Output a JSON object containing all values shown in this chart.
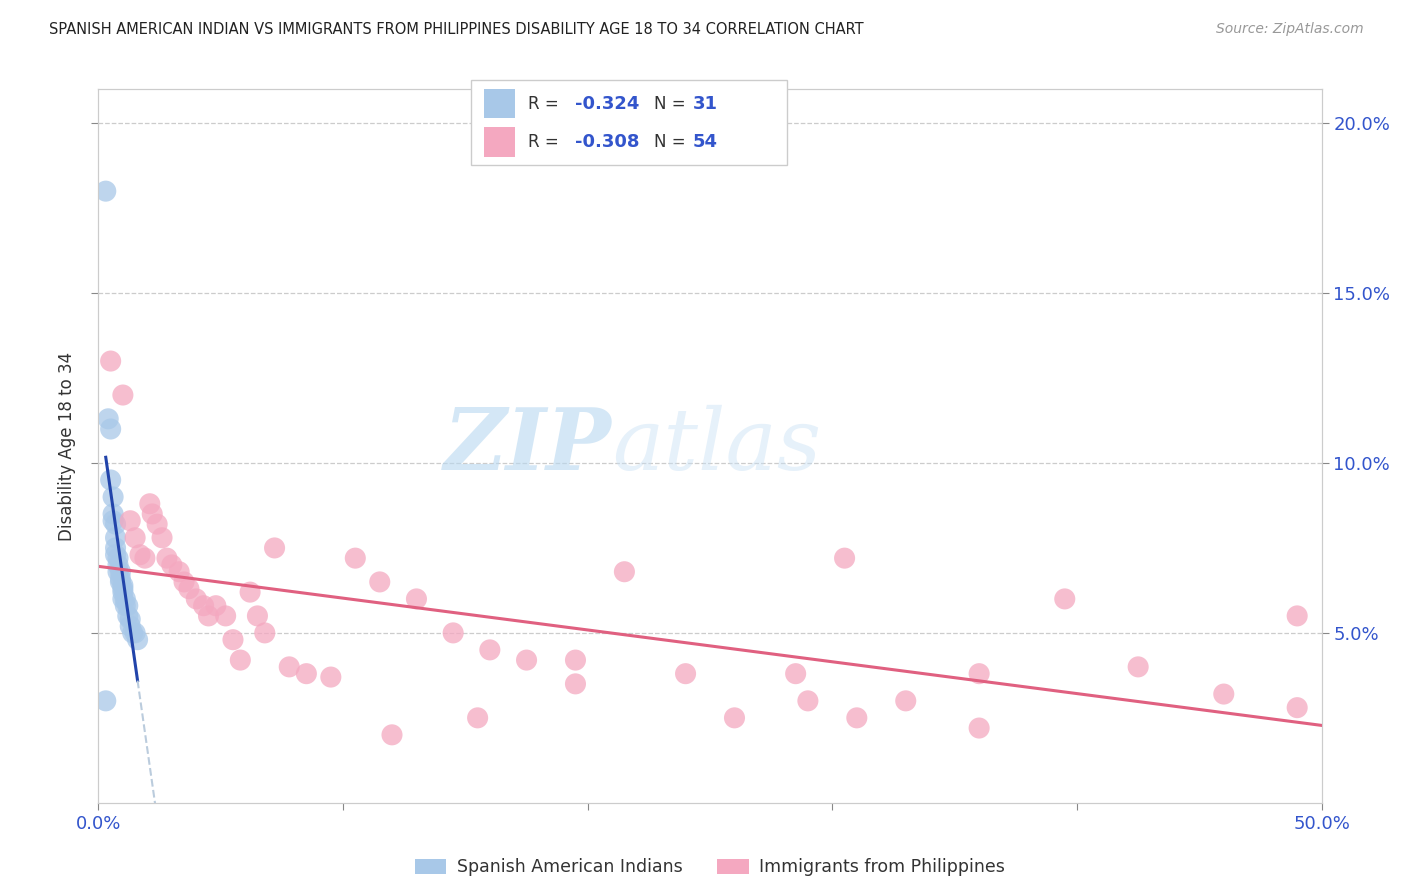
{
  "title": "SPANISH AMERICAN INDIAN VS IMMIGRANTS FROM PHILIPPINES DISABILITY AGE 18 TO 34 CORRELATION CHART",
  "source": "Source: ZipAtlas.com",
  "ylabel": "Disability Age 18 to 34",
  "xlim": [
    0.0,
    0.5
  ],
  "ylim": [
    0.0,
    0.21
  ],
  "yticks": [
    0.05,
    0.1,
    0.15,
    0.2
  ],
  "ytick_labels": [
    "5.0%",
    "10.0%",
    "15.0%",
    "20.0%"
  ],
  "legend_R1": "-0.324",
  "legend_N1": "31",
  "legend_R2": "-0.308",
  "legend_N2": "54",
  "color_blue": "#a8c8e8",
  "color_pink": "#f4a8c0",
  "line_blue": "#2244aa",
  "line_pink": "#e06080",
  "line_dashed_color": "#bbccdd",
  "watermark_zip": "ZIP",
  "watermark_atlas": "atlas",
  "legend_label1": "Spanish American Indians",
  "legend_label2": "Immigrants from Philippines",
  "blue_x": [
    0.003,
    0.004,
    0.005,
    0.005,
    0.006,
    0.006,
    0.006,
    0.007,
    0.007,
    0.007,
    0.007,
    0.008,
    0.008,
    0.008,
    0.009,
    0.009,
    0.009,
    0.01,
    0.01,
    0.01,
    0.01,
    0.011,
    0.011,
    0.012,
    0.012,
    0.013,
    0.013,
    0.014,
    0.015,
    0.016,
    0.003
  ],
  "blue_y": [
    0.18,
    0.113,
    0.11,
    0.095,
    0.09,
    0.085,
    0.083,
    0.082,
    0.078,
    0.075,
    0.073,
    0.072,
    0.07,
    0.068,
    0.068,
    0.066,
    0.065,
    0.064,
    0.063,
    0.062,
    0.06,
    0.06,
    0.058,
    0.058,
    0.055,
    0.054,
    0.052,
    0.05,
    0.05,
    0.048,
    0.03
  ],
  "pink_x": [
    0.005,
    0.01,
    0.013,
    0.015,
    0.017,
    0.019,
    0.021,
    0.022,
    0.024,
    0.026,
    0.028,
    0.03,
    0.033,
    0.035,
    0.037,
    0.04,
    0.043,
    0.045,
    0.048,
    0.052,
    0.055,
    0.058,
    0.062,
    0.065,
    0.068,
    0.072,
    0.078,
    0.085,
    0.095,
    0.105,
    0.115,
    0.13,
    0.145,
    0.16,
    0.175,
    0.195,
    0.215,
    0.24,
    0.26,
    0.285,
    0.305,
    0.33,
    0.36,
    0.395,
    0.425,
    0.46,
    0.49,
    0.29,
    0.195,
    0.155,
    0.12,
    0.36,
    0.49,
    0.31
  ],
  "pink_y": [
    0.13,
    0.12,
    0.083,
    0.078,
    0.073,
    0.072,
    0.088,
    0.085,
    0.082,
    0.078,
    0.072,
    0.07,
    0.068,
    0.065,
    0.063,
    0.06,
    0.058,
    0.055,
    0.058,
    0.055,
    0.048,
    0.042,
    0.062,
    0.055,
    0.05,
    0.075,
    0.04,
    0.038,
    0.037,
    0.072,
    0.065,
    0.06,
    0.05,
    0.045,
    0.042,
    0.035,
    0.068,
    0.038,
    0.025,
    0.038,
    0.072,
    0.03,
    0.038,
    0.06,
    0.04,
    0.032,
    0.028,
    0.03,
    0.042,
    0.025,
    0.02,
    0.022,
    0.055,
    0.025
  ],
  "blue_line_x_start": 0.003,
  "blue_line_x_end_solid": 0.016,
  "blue_line_x_end_dashed": 0.16,
  "pink_line_x_start": 0.0,
  "pink_line_x_end": 0.5
}
